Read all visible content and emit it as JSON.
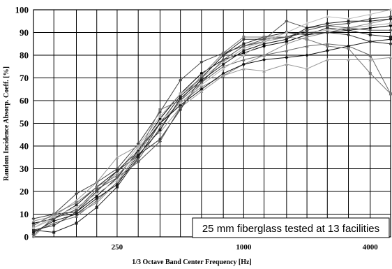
{
  "chart_data": {
    "type": "line",
    "title": "",
    "xlabel": "1/3 Octave Band Center Frequency [Hz]",
    "ylabel": "Random Incidence Absorp. Coeff. [%]",
    "x_scale": "log",
    "xlim": [
      100,
      5000
    ],
    "ylim": [
      0,
      100
    ],
    "y_ticks": [
      0,
      10,
      20,
      30,
      40,
      50,
      60,
      70,
      80,
      90,
      100
    ],
    "x_tick_labels": [
      {
        "value": 250,
        "label": "250"
      },
      {
        "value": 1000,
        "label": "1000"
      },
      {
        "value": 4000,
        "label": "4000"
      }
    ],
    "grid": true,
    "legend": "none",
    "annotation": "25 mm fiberglass tested at 13 facilities",
    "x": [
      100,
      125,
      160,
      200,
      250,
      315,
      400,
      500,
      630,
      800,
      1000,
      1250,
      1600,
      2000,
      2500,
      3150,
      4000,
      5000
    ],
    "series": [
      {
        "values": [
          5,
          10,
          11,
          18,
          26,
          38,
          52,
          63,
          72,
          78,
          81,
          84,
          86,
          89,
          90,
          91,
          92,
          93
        ]
      },
      {
        "values": [
          3,
          2,
          6,
          13,
          22,
          35,
          50,
          62,
          70,
          80,
          85,
          88,
          90,
          89,
          92,
          91,
          89,
          88
        ]
      },
      {
        "values": [
          8,
          10,
          19,
          24,
          30,
          41,
          55,
          69,
          77,
          81,
          84,
          86,
          88,
          91,
          93,
          94,
          96,
          97
        ]
      },
      {
        "values": [
          2,
          6,
          9,
          16,
          24,
          34,
          48,
          60,
          68,
          75,
          78,
          80,
          82,
          84,
          85,
          84,
          80,
          63
        ]
      },
      {
        "values": [
          0,
          9,
          10,
          15,
          24,
          37,
          50,
          59,
          66,
          71,
          76,
          80,
          85,
          88,
          90,
          92,
          94,
          96
        ]
      },
      {
        "values": [
          4,
          8,
          12,
          20,
          28,
          40,
          53,
          63,
          70,
          77,
          83,
          86,
          88,
          90,
          91,
          92,
          93,
          94
        ]
      },
      {
        "values": [
          6,
          8,
          14,
          22,
          29,
          38,
          50,
          58,
          65,
          72,
          76,
          78,
          79,
          80,
          82,
          84,
          86,
          87
        ]
      },
      {
        "values": [
          7,
          9,
          16,
          24,
          35,
          40,
          46,
          57,
          64,
          71,
          74,
          73,
          76,
          74,
          78,
          78,
          78,
          79
        ]
      },
      {
        "values": [
          3,
          5,
          11,
          20,
          29,
          36,
          43,
          56,
          70,
          80,
          87,
          87,
          88,
          90,
          90,
          89,
          86,
          85
        ]
      },
      {
        "values": [
          5,
          10,
          15,
          22,
          27,
          37,
          56,
          60,
          71,
          81,
          88,
          88,
          88,
          87,
          84,
          83,
          72,
          63
        ]
      },
      {
        "values": [
          1,
          8,
          12,
          21,
          26,
          33,
          42,
          57,
          68,
          78,
          84,
          87,
          95,
          92,
          93,
          92,
          91,
          91
        ]
      },
      {
        "values": [
          4,
          9,
          13,
          19,
          25,
          39,
          51,
          59,
          67,
          74,
          80,
          86,
          90,
          94,
          97,
          96,
          98,
          100
        ]
      },
      {
        "values": [
          2,
          7,
          10,
          17,
          23,
          36,
          47,
          61,
          69,
          76,
          82,
          85,
          87,
          92,
          94,
          95,
          95,
          96
        ]
      }
    ],
    "colors": {
      "series": [
        "#000000",
        "#222222",
        "#444444",
        "#666666",
        "#888888",
        "#aaaaaa",
        "#101010",
        "#999999",
        "#333333",
        "#777777",
        "#555555",
        "#bbbbbb",
        "#1a1a1a"
      ],
      "grid": "#000000",
      "background": "#ffffff"
    }
  }
}
